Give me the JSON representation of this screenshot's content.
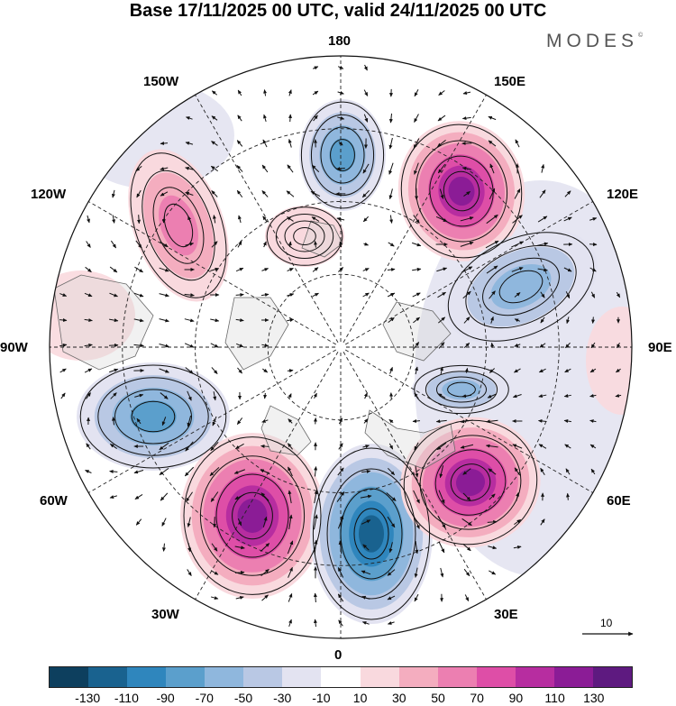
{
  "title": "Base 17/11/2025 00 UTC, valid 24/11/2025 00 UTC",
  "brand": {
    "name": "MODES",
    "mark": "©"
  },
  "longitude_labels": [
    "180",
    "150E",
    "120E",
    "90E",
    "60E",
    "30E",
    "0",
    "30W",
    "60W",
    "90W",
    "120W",
    "150W"
  ],
  "reference_vector": {
    "label": "10"
  },
  "colorbar": {
    "colors": [
      "#0d3f5e",
      "#19628f",
      "#2f86bd",
      "#5b9fcc",
      "#8fb7dd",
      "#b9c8e4",
      "#e3e3f1",
      "#ffffff",
      "#f9d9de",
      "#f4adbf",
      "#ec7fb1",
      "#de4ea7",
      "#b72da0",
      "#8b1c96",
      "#5e1a80"
    ],
    "tick_labels": [
      "-130",
      "-110",
      "-90",
      "-70",
      "-50",
      "-30",
      "-10",
      "10",
      "30",
      "50",
      "70",
      "90",
      "110",
      "130"
    ]
  },
  "anomaly_centers": [
    {
      "name": "anomaly-positive-north-pacific",
      "value": 120
    },
    {
      "name": "anomaly-negative-bering",
      "value": -80
    },
    {
      "name": "anomaly-positive-north-america-west",
      "value": 70
    },
    {
      "name": "anomaly-negative-siberia",
      "value": -70
    },
    {
      "name": "anomaly-negative-north-atlantic-west",
      "value": -90
    },
    {
      "name": "anomaly-positive-north-atlantic",
      "value": 120
    },
    {
      "name": "anomaly-negative-europe",
      "value": -130
    },
    {
      "name": "anomaly-positive-russia",
      "value": 120
    },
    {
      "name": "anomaly-negative-central-asia",
      "value": -60
    },
    {
      "name": "anomaly-positive-arctic-chukchi",
      "value": 30
    }
  ]
}
